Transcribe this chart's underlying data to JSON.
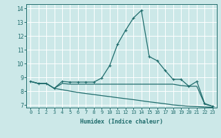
{
  "xlabel": "Humidex (Indice chaleur)",
  "background_color": "#cce8e8",
  "line_color": "#1e6b6b",
  "grid_color": "#ffffff",
  "xlim": [
    -0.5,
    23.5
  ],
  "ylim": [
    6.8,
    14.3
  ],
  "xticks": [
    0,
    1,
    2,
    3,
    4,
    5,
    6,
    7,
    8,
    9,
    10,
    11,
    12,
    13,
    14,
    15,
    16,
    17,
    18,
    19,
    20,
    21,
    22,
    23
  ],
  "yticks": [
    7,
    8,
    9,
    10,
    11,
    12,
    13,
    14
  ],
  "line1_x": [
    0,
    1,
    2,
    3,
    4,
    5,
    6,
    7,
    8,
    9,
    10,
    11,
    12,
    13,
    14,
    15,
    16,
    17,
    18,
    19,
    20,
    21,
    22,
    23
  ],
  "line1_y": [
    8.7,
    8.55,
    8.55,
    8.2,
    8.7,
    8.65,
    8.65,
    8.65,
    8.65,
    8.95,
    9.85,
    11.4,
    12.4,
    13.3,
    13.85,
    10.5,
    10.2,
    9.5,
    8.85,
    8.85,
    8.35,
    8.7,
    7.1,
    6.9
  ],
  "line2_x": [
    0,
    1,
    2,
    3,
    4,
    5,
    6,
    7,
    8,
    9,
    10,
    11,
    12,
    13,
    14,
    15,
    16,
    17,
    18,
    19,
    20,
    21,
    22,
    23
  ],
  "line2_y": [
    8.7,
    8.55,
    8.55,
    8.2,
    8.55,
    8.5,
    8.5,
    8.5,
    8.5,
    8.5,
    8.5,
    8.5,
    8.5,
    8.5,
    8.5,
    8.5,
    8.5,
    8.5,
    8.5,
    8.4,
    8.35,
    8.35,
    7.05,
    6.9
  ],
  "line3_x": [
    0,
    1,
    2,
    3,
    4,
    5,
    6,
    7,
    8,
    9,
    10,
    11,
    12,
    13,
    14,
    15,
    16,
    17,
    18,
    19,
    20,
    21,
    22,
    23
  ],
  "line3_y": [
    8.7,
    8.55,
    8.55,
    8.2,
    8.1,
    8.0,
    7.9,
    7.82,
    7.75,
    7.67,
    7.6,
    7.52,
    7.45,
    7.38,
    7.3,
    7.22,
    7.15,
    7.08,
    7.0,
    6.95,
    6.9,
    6.88,
    6.85,
    6.82
  ]
}
